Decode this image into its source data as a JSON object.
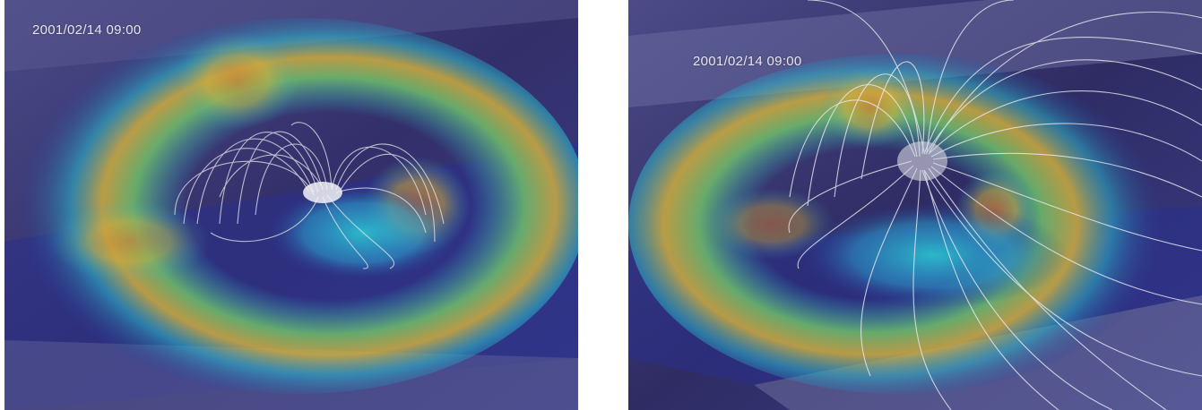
{
  "panels": [
    {
      "timestamp": "2001/02/14 09:00"
    },
    {
      "timestamp": "2001/02/14 09:00"
    }
  ],
  "colors": {
    "background_plane": "#3a3872",
    "deep_blue": "#2a2f8c",
    "cyan": "#2bb3c9",
    "green": "#6fbf6a",
    "yellow": "#d9b53a",
    "orange": "#d97a2b",
    "field_lines": "#e8e8ee"
  },
  "icons": []
}
